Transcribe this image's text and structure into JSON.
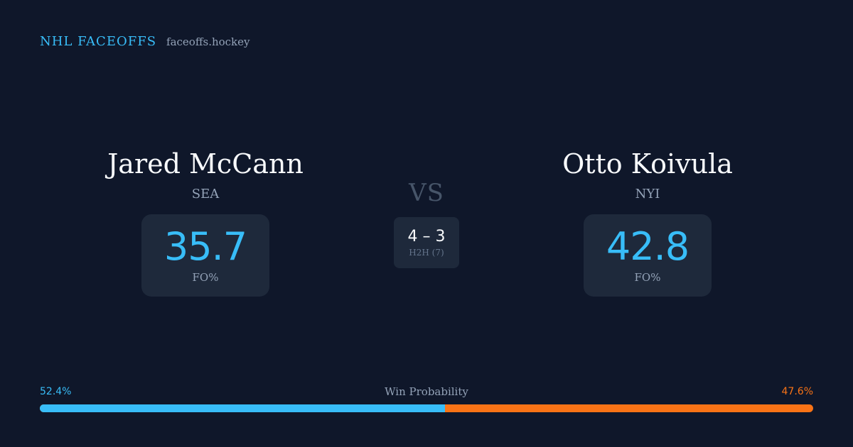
{
  "brand": {
    "name": "NHL FACEOFFS",
    "url": "faceoffs.hockey"
  },
  "player_left": {
    "name": "Jared McCann",
    "team": "SEA",
    "stat_value": "35.7",
    "stat_label": "FO%"
  },
  "player_right": {
    "name": "Otto Koivula",
    "team": "NYI",
    "stat_value": "42.8",
    "stat_label": "FO%"
  },
  "versus": {
    "label": "VS",
    "h2h_score": "4 – 3",
    "h2h_label": "H2H (7)"
  },
  "win_probability": {
    "title": "Win Probability",
    "left_text": "52.4%",
    "right_text": "47.6%",
    "left_fraction": 0.524
  },
  "colors": {
    "background": "#0f172a",
    "card": "#1e293b",
    "accent_blue": "#38bdf8",
    "accent_orange": "#f97316",
    "muted": "#94a3b8"
  }
}
